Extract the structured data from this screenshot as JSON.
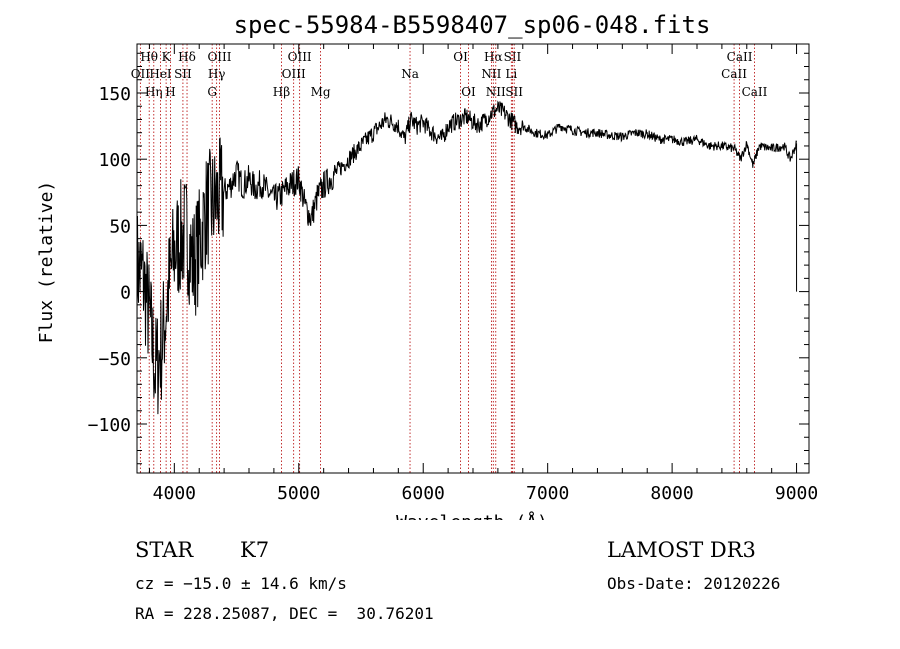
{
  "chart_data": {
    "type": "line",
    "title": "spec-55984-B5598407_sp06-048.fits",
    "xlabel": "Wavelength (Å)",
    "ylabel": "Flux (relative)",
    "xlim": [
      3700,
      9100
    ],
    "ylim": [
      -137,
      187
    ],
    "xticks": [
      4000,
      5000,
      6000,
      7000,
      8000,
      9000
    ],
    "yticks": [
      -100,
      -50,
      0,
      50,
      100,
      150
    ],
    "series": [
      {
        "name": "spectrum",
        "x": [
          3700,
          3750,
          3800,
          3850,
          3900,
          3950,
          4000,
          4050,
          4100,
          4150,
          4200,
          4250,
          4300,
          4350,
          4400,
          4450,
          4500,
          4550,
          4600,
          4650,
          4700,
          4750,
          4800,
          4850,
          4900,
          4950,
          5000,
          5050,
          5100,
          5150,
          5200,
          5250,
          5300,
          5350,
          5400,
          5450,
          5500,
          5550,
          5600,
          5650,
          5700,
          5750,
          5800,
          5850,
          5900,
          5950,
          6000,
          6050,
          6100,
          6150,
          6200,
          6250,
          6300,
          6350,
          6400,
          6450,
          6500,
          6550,
          6600,
          6650,
          6700,
          6750,
          6800,
          6900,
          7000,
          7100,
          7200,
          7300,
          7400,
          7500,
          7600,
          7700,
          7800,
          7900,
          8000,
          8100,
          8200,
          8300,
          8400,
          8500,
          8550,
          8600,
          8650,
          8700,
          8800,
          8900,
          8950,
          9000
        ],
        "y": [
          20,
          10,
          -20,
          -60,
          -40,
          0,
          30,
          40,
          45,
          20,
          35,
          60,
          65,
          70,
          75,
          80,
          90,
          80,
          85,
          78,
          82,
          75,
          70,
          72,
          78,
          82,
          85,
          65,
          55,
          72,
          80,
          85,
          90,
          95,
          100,
          105,
          110,
          115,
          120,
          125,
          130,
          128,
          125,
          115,
          130,
          125,
          128,
          122,
          118,
          115,
          125,
          128,
          130,
          132,
          128,
          126,
          130,
          135,
          138,
          135,
          130,
          125,
          125,
          120,
          118,
          125,
          122,
          120,
          120,
          118,
          117,
          120,
          119,
          115,
          115,
          113,
          115,
          110,
          110,
          108,
          100,
          112,
          95,
          110,
          108,
          110,
          100,
          112
        ]
      }
    ],
    "lines": [
      {
        "label": "Hθ",
        "x": 3798,
        "row": 0
      },
      {
        "label": "OII",
        "x": 3727,
        "row": 1
      },
      {
        "label": "Hη",
        "x": 3835,
        "row": 2
      },
      {
        "label": "K",
        "x": 3934,
        "row": 0
      },
      {
        "label": "HeI",
        "x": 3889,
        "row": 1
      },
      {
        "label": "H",
        "x": 3969,
        "row": 2
      },
      {
        "label": "Hδ",
        "x": 4102,
        "row": 0
      },
      {
        "label": "SII",
        "x": 4069,
        "row": 1
      },
      {
        "label": "OIII",
        "x": 4363,
        "row": 0
      },
      {
        "label": "Hγ",
        "x": 4340,
        "row": 1
      },
      {
        "label": "G",
        "x": 4304,
        "row": 2
      },
      {
        "label": "Hβ",
        "x": 4861,
        "row": 2
      },
      {
        "label": "OIII",
        "x": 5007,
        "row": 0
      },
      {
        "label": "OIII",
        "x": 4959,
        "row": 1
      },
      {
        "label": "Mg",
        "x": 5175,
        "row": 2
      },
      {
        "label": "Na",
        "x": 5894,
        "row": 1
      },
      {
        "label": "OI",
        "x": 6300,
        "row": 0
      },
      {
        "label": "OI",
        "x": 6364,
        "row": 2
      },
      {
        "label": "Hα",
        "x": 6563,
        "row": 0
      },
      {
        "label": "NII",
        "x": 6548,
        "row": 1
      },
      {
        "label": "NII",
        "x": 6583,
        "row": 2
      },
      {
        "label": "SII",
        "x": 6717,
        "row": 0
      },
      {
        "label": "Li",
        "x": 6708,
        "row": 1
      },
      {
        "label": "SII",
        "x": 6731,
        "row": 2
      },
      {
        "label": "CaII",
        "x": 8542,
        "row": 0
      },
      {
        "label": "CaII",
        "x": 8498,
        "row": 1
      },
      {
        "label": "CaII",
        "x": 8662,
        "row": 2
      }
    ]
  },
  "info": {
    "class": "STAR",
    "subclass": "K7",
    "survey": "LAMOST DR3",
    "cz": "cz = −15.0 ± 14.6 km/s",
    "obsdate": "Obs-Date: 20120226",
    "radec": "RA = 228.25087, DEC =  30.76201"
  }
}
